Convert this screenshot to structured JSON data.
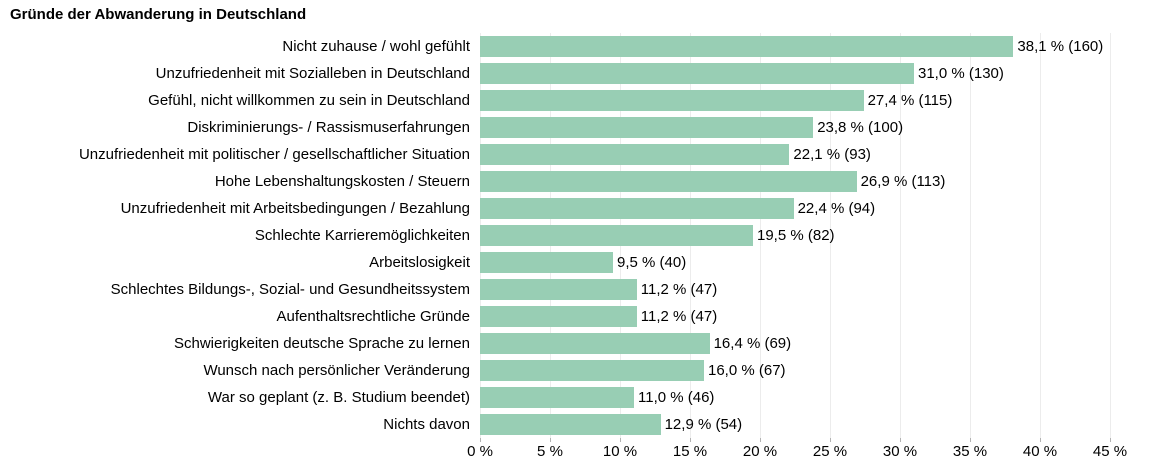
{
  "chart_data": {
    "type": "bar",
    "orientation": "horizontal",
    "title": "Gründe der Abwanderung in Deutschland",
    "categories": [
      "Nicht zuhause / wohl gefühlt",
      "Unzufriedenheit mit Sozialleben in Deutschland",
      "Gefühl, nicht willkommen zu sein in Deutschland",
      "Diskriminierungs- / Rassismuserfahrungen",
      "Unzufriedenheit mit politischer / gesellschaftlicher Situation",
      "Hohe Lebenshaltungskosten / Steuern",
      "Unzufriedenheit mit Arbeitsbedingungen / Bezahlung",
      "Schlechte Karrieremöglichkeiten",
      "Arbeitslosigkeit",
      "Schlechtes Bildungs-, Sozial- und Gesundheitssystem",
      "Aufenthaltsrechtliche Gründe",
      "Schwierigkeiten deutsche Sprache zu lernen",
      "Wunsch nach persönlicher Veränderung",
      "War so geplant (z. B. Studium beendet)",
      "Nichts davon"
    ],
    "values": [
      38.1,
      31.0,
      27.4,
      23.8,
      22.1,
      26.9,
      22.4,
      19.5,
      9.5,
      11.2,
      11.2,
      16.4,
      16.0,
      11.0,
      12.9
    ],
    "counts": [
      160,
      130,
      115,
      100,
      93,
      113,
      94,
      82,
      40,
      47,
      47,
      69,
      67,
      46,
      54
    ],
    "value_labels": [
      "38,1 % (160)",
      "31,0 % (130)",
      "27,4 % (115)",
      "23,8 % (100)",
      "22,1 % (93)",
      "26,9 % (113)",
      "22,4 % (94)",
      "19,5 % (82)",
      "9,5 % (40)",
      "11,2 % (47)",
      "11,2 % (47)",
      "16,4 % (69)",
      "16,0 % (67)",
      "11,0 % (46)",
      "12,9 % (54)"
    ],
    "xlabel": "",
    "ylabel": "",
    "xlim": [
      0,
      45
    ],
    "x_tick_step": 5,
    "x_tick_labels": [
      "0 %",
      "5 %",
      "10 %",
      "15 %",
      "20 %",
      "25 %",
      "30 %",
      "35 %",
      "40 %",
      "45 %"
    ],
    "grid": true,
    "legend": false,
    "bar_color": "#98ceb4",
    "grid_color": "#ececec",
    "tick_color": "#b3b3b3",
    "text_color": "#000000"
  }
}
